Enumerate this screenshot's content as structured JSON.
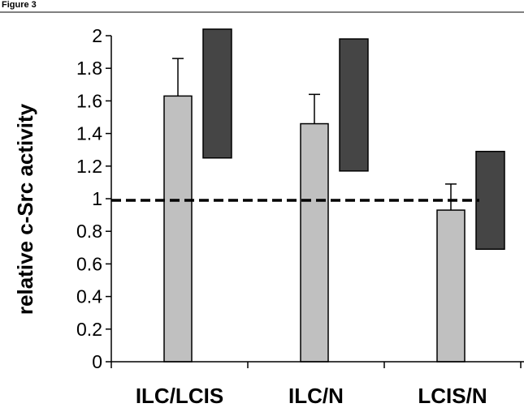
{
  "corner_label": "Figure 3",
  "chart_data": {
    "type": "bar",
    "title": "",
    "xlabel": "",
    "ylabel": "relative c-Src activity",
    "ylim": [
      0,
      2
    ],
    "yticks": [
      "0",
      "0.2",
      "0.4",
      "0.6",
      "0.8",
      "1",
      "1.2",
      "1.4",
      "1.6",
      "1.8",
      "2"
    ],
    "ytick_values": [
      0,
      0.2,
      0.4,
      0.6,
      0.8,
      1,
      1.2,
      1.4,
      1.6,
      1.8,
      2
    ],
    "categories": [
      "ILC/LCIS",
      "ILC/N",
      "LCIS/N"
    ],
    "values": [
      1.63,
      1.46,
      0.93
    ],
    "error_upper": [
      1.86,
      1.64,
      1.09
    ],
    "range_boxes": [
      {
        "low": 1.25,
        "high": 2.04
      },
      {
        "low": 1.17,
        "high": 1.98
      },
      {
        "low": 0.69,
        "high": 1.29
      }
    ],
    "reference_line": 0.99,
    "colors": {
      "bar": "#c0c0c0",
      "range_box": "#454545",
      "outline": "#000000",
      "reference_line": "#000000"
    },
    "grid": false,
    "legend": "none"
  }
}
